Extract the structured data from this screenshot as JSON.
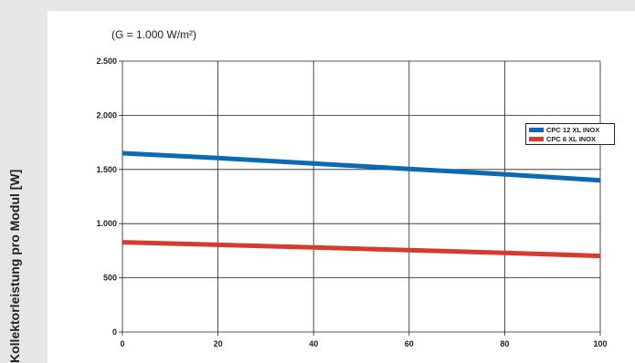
{
  "chart_data": {
    "type": "line",
    "subtitle": "(G = 1.000 W/m²)",
    "xlabel": "",
    "ylabel": "Kollektorleistung pro Modul [W]",
    "x": [
      0,
      20,
      40,
      60,
      80,
      100
    ],
    "xticks": [
      0,
      20,
      40,
      60,
      80,
      100
    ],
    "xlim": [
      0,
      100
    ],
    "ylim": [
      0,
      2500
    ],
    "yticks": [
      0,
      500,
      1000,
      1500,
      2000,
      2500
    ],
    "ytick_labels": [
      "0",
      "500",
      "1.000",
      "1.500",
      "2.000",
      "2.500"
    ],
    "grid": true,
    "legend_placement": "right",
    "series": [
      {
        "name": "CPC 12 XL INOX",
        "color": "#0a6ab4",
        "values": [
          1650,
          1605,
          1555,
          1505,
          1455,
          1400
        ]
      },
      {
        "name": "CPC 6 XL INOX",
        "color": "#d63b2e",
        "values": [
          828,
          805,
          780,
          755,
          730,
          702
        ]
      }
    ]
  }
}
